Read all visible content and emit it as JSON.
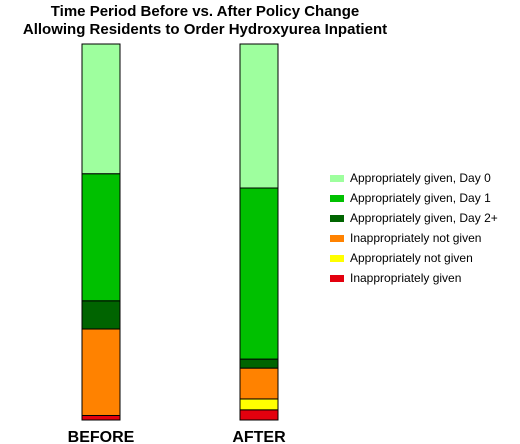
{
  "chart_data": {
    "type": "bar",
    "stacked": true,
    "title": [
      "Time Period Before vs. After Policy Change",
      "Allowing Residents to Order Hydroxyurea Inpatient"
    ],
    "categories": [
      "BEFORE",
      "AFTER"
    ],
    "ylim": [
      0,
      100
    ],
    "series": [
      {
        "name": "Inappropriately given",
        "color": "#e3000e",
        "values": [
          1.2,
          2.7
        ]
      },
      {
        "name": "Appropriately not given",
        "color": "#ffff00",
        "values": [
          0,
          2.9
        ]
      },
      {
        "name": "Inappropriately not given",
        "color": "#ff8200",
        "values": [
          23,
          8.2
        ]
      },
      {
        "name": "Appropriately given, Day 2+",
        "color": "#006400",
        "values": [
          7.5,
          2.4
        ]
      },
      {
        "name": "Appropriately given, Day 1",
        "color": "#00c000",
        "values": [
          33.8,
          45.5
        ]
      },
      {
        "name": "Appropriately given, Day 0",
        "color": "#9eff9e",
        "values": [
          34.5,
          38.3
        ]
      }
    ],
    "legend": {
      "position": "right",
      "order": [
        "Appropriately given, Day 0",
        "Appropriately given, Day 1",
        "Appropriately given, Day 2+",
        "Inappropriately not given",
        "Appropriately not given",
        "Inappropriately given"
      ]
    }
  }
}
